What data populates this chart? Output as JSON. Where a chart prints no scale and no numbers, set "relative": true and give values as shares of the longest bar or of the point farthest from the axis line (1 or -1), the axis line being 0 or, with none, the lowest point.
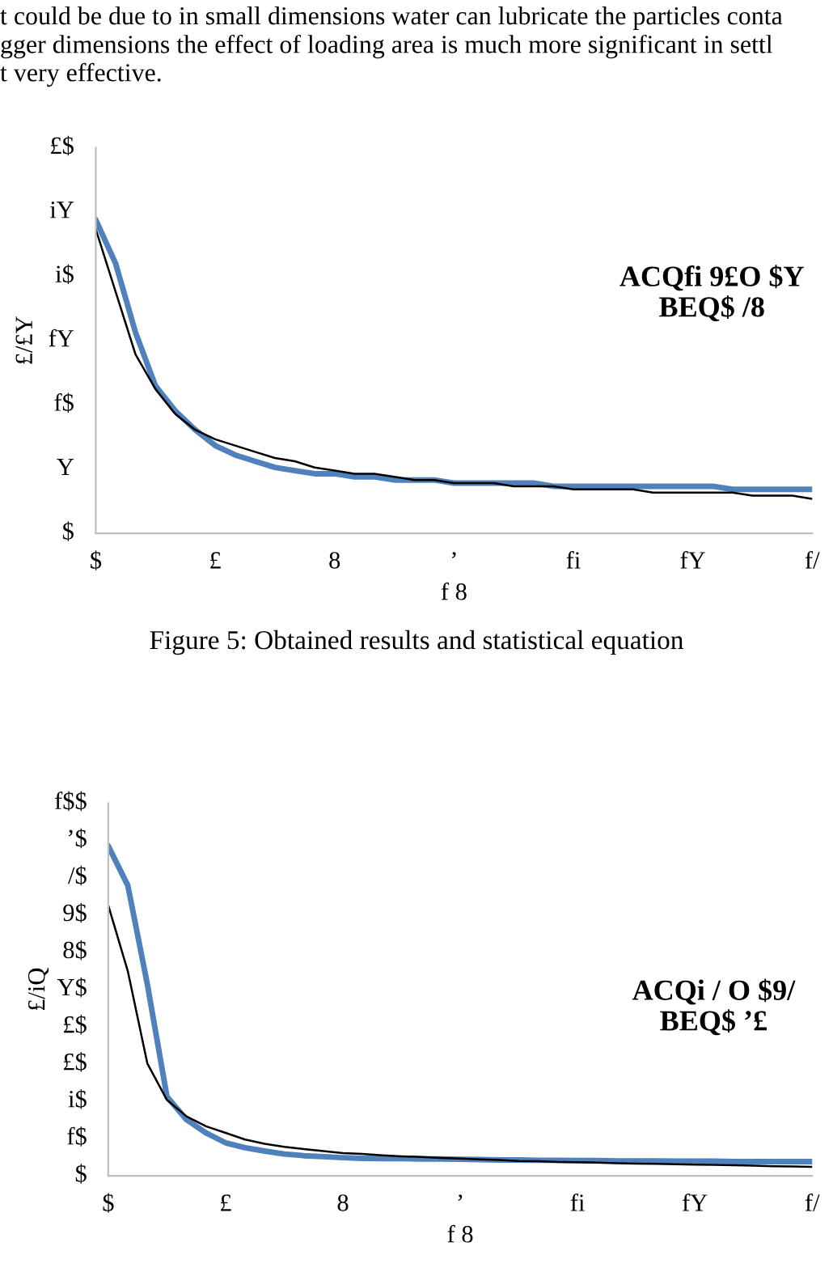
{
  "chart_data": [
    {
      "type": "line",
      "relative": true,
      "xlabel": "f 8",
      "ylabel": "£/£Y",
      "categories": [
        "$",
        null,
        null,
        null,
        null,
        null,
        "£",
        null,
        null,
        null,
        null,
        null,
        "8",
        null,
        null,
        null,
        null,
        null,
        "ʼ",
        null,
        null,
        null,
        null,
        null,
        "fi",
        null,
        null,
        null,
        null,
        null,
        "fY",
        null,
        null,
        null,
        null,
        null,
        "f/"
      ],
      "annotations": [
        "ACQfi 9£O $Y\nBEQ$ /8",
        "$",
        "Y",
        "f$",
        "fY",
        "i$",
        "iY",
        "£$",
        "t could be due to in small dimensions water can lubricate the particles conta",
        "gger dimensions the effect of loading area is much more significant in settl",
        "t very effective.",
        "Figure 5: Obtained results and statistical equation"
      ],
      "series": [
        {
          "color": "#4f81bd",
          "values": [
            1,
            0.86,
            0.64,
            0.47,
            0.39,
            0.33,
            0.28,
            0.25,
            0.23,
            0.21,
            0.2,
            0.19,
            0.19,
            0.18,
            0.18,
            0.17,
            0.17,
            0.17,
            0.16,
            0.16,
            0.16,
            0.16,
            0.16,
            0.15,
            0.15,
            0.15,
            0.15,
            0.15,
            0.15,
            0.15,
            0.15,
            0.15,
            0.14,
            0.14,
            0.14,
            0.14,
            0.14
          ]
        },
        {
          "color": "#000000",
          "values": [
            0.97,
            0.77,
            0.57,
            0.46,
            0.38,
            0.33,
            0.3,
            0.28,
            0.26,
            0.24,
            0.23,
            0.21,
            0.2,
            0.19,
            0.19,
            0.18,
            0.17,
            0.17,
            0.16,
            0.16,
            0.16,
            0.15,
            0.15,
            0.15,
            0.14,
            0.14,
            0.14,
            0.14,
            0.13,
            0.13,
            0.13,
            0.13,
            0.13,
            0.12,
            0.12,
            0.12,
            0.11
          ]
        }
      ]
    },
    {
      "type": "line",
      "relative": true,
      "xlabel": "f 8",
      "ylabel": "£/iQ",
      "categories": [
        "$",
        null,
        null,
        null,
        null,
        null,
        "£",
        null,
        null,
        null,
        null,
        null,
        "8",
        null,
        null,
        null,
        null,
        null,
        "ʼ",
        null,
        null,
        null,
        null,
        null,
        "fi",
        null,
        null,
        null,
        null,
        null,
        "fY",
        null,
        null,
        null,
        null,
        null,
        "f/"
      ],
      "annotations": [
        "ACQi / O $9/\nBEQ$ ʼ£",
        "$",
        "f$",
        "i$",
        "£$",
        "£$",
        "Y$",
        "8$",
        "9$",
        "/$",
        "ʼ$",
        "f$$"
      ],
      "series": [
        {
          "color": "#4f81bd",
          "values": [
            1,
            0.88,
            0.58,
            0.24,
            0.17,
            0.13,
            0.1,
            0.085,
            0.075,
            0.066,
            0.061,
            0.058,
            0.055,
            0.053,
            0.052,
            0.052,
            0.051,
            0.051,
            0.05,
            0.049,
            0.048,
            0.048,
            0.047,
            0.047,
            0.046,
            0.046,
            0.045,
            0.045,
            0.045,
            0.044,
            0.044,
            0.044,
            0.043,
            0.043,
            0.043,
            0.043,
            0.043
          ]
        },
        {
          "color": "#000000",
          "values": [
            0.82,
            0.62,
            0.34,
            0.23,
            0.18,
            0.15,
            0.13,
            0.11,
            0.097,
            0.088,
            0.081,
            0.075,
            0.069,
            0.066,
            0.062,
            0.059,
            0.057,
            0.054,
            0.052,
            0.05,
            0.048,
            0.045,
            0.044,
            0.042,
            0.041,
            0.04,
            0.038,
            0.037,
            0.036,
            0.035,
            0.034,
            0.033,
            0.032,
            0.031,
            0.029,
            0.028,
            0.027
          ]
        }
      ]
    }
  ]
}
